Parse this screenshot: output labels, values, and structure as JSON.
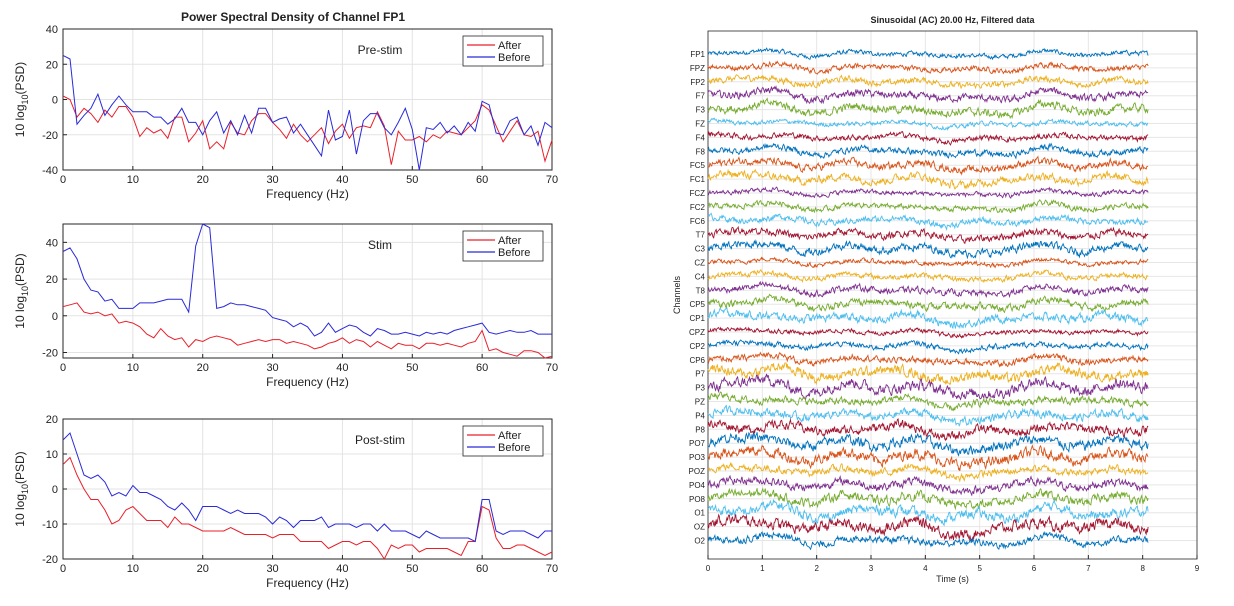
{
  "psd_title": "Power Spectral Density of Channel FP1",
  "eeg_title": "Sinusoidal (AC) 20.00 Hz, Filtered data",
  "chart_data": [
    {
      "type": "line",
      "panel": "Pre-stim",
      "xlabel": "Frequency (Hz)",
      "ylabel": "10 log10(PSD)",
      "xlim": [
        0,
        70
      ],
      "ylim": [
        -40,
        40
      ],
      "xticks": [
        0,
        10,
        20,
        30,
        40,
        50,
        60,
        70
      ],
      "yticks": [
        -40,
        -20,
        0,
        20,
        40
      ],
      "grid": true,
      "legend": "top-right",
      "x": [
        0,
        1,
        2,
        3,
        4,
        5,
        6,
        7,
        8,
        9,
        10,
        11,
        12,
        13,
        14,
        15,
        16,
        17,
        18,
        19,
        20,
        21,
        22,
        23,
        24,
        25,
        26,
        27,
        28,
        29,
        30,
        31,
        32,
        33,
        34,
        35,
        36,
        37,
        38,
        39,
        40,
        41,
        42,
        43,
        44,
        45,
        46,
        47,
        48,
        49,
        50,
        51,
        52,
        53,
        54,
        55,
        56,
        57,
        58,
        59,
        60,
        61,
        62,
        63,
        64,
        65,
        66,
        67,
        68,
        69,
        70
      ],
      "series": [
        {
          "name": "After",
          "color": "#e8202a",
          "values": [
            2,
            0,
            -10,
            -5,
            -8,
            -13,
            -6,
            -10,
            -4,
            -4,
            -10,
            -21,
            -16,
            -19,
            -17,
            -22,
            -10,
            -10,
            -24,
            -19,
            -12,
            -28,
            -24,
            -28,
            -13,
            -19,
            -20,
            -12,
            -8,
            -8,
            -13,
            -17,
            -22,
            -14,
            -20,
            -24,
            -20,
            -16,
            -25,
            -18,
            -14,
            -22,
            -16,
            -15,
            -16,
            -7,
            -15,
            -37,
            -18,
            -23,
            -23,
            -21,
            -24,
            -20,
            -22,
            -18,
            -19,
            -20,
            -16,
            -12,
            -3,
            -6,
            -15,
            -24,
            -18,
            -12,
            -20,
            -21,
            -18,
            -35,
            -23
          ]
        },
        {
          "name": "Before",
          "color": "#2a2ad8",
          "values": [
            25,
            23,
            -14,
            -9,
            -5,
            3,
            -9,
            -3,
            2,
            -3,
            -7,
            -7,
            -7,
            -10,
            -10,
            -14,
            -11,
            -5,
            -13,
            -13,
            -20,
            -12,
            -7,
            -19,
            -12,
            -20,
            -9,
            -19,
            -5,
            -5,
            -13,
            -11,
            -10,
            -19,
            -14,
            -20,
            -26,
            -32,
            -6,
            -23,
            -21,
            -6,
            -31,
            -12,
            -8,
            -8,
            -16,
            -20,
            -13,
            -5,
            -17,
            -40,
            -16,
            -17,
            -13,
            -19,
            -15,
            -20,
            -13,
            -18,
            -1,
            -3,
            -19,
            -20,
            -12,
            -10,
            -20,
            -15,
            -26,
            -13,
            -16
          ]
        }
      ]
    },
    {
      "type": "line",
      "panel": "Stim",
      "xlabel": "Frequency (Hz)",
      "ylabel": "10 log10(PSD)",
      "xlim": [
        0,
        70
      ],
      "ylim": [
        -23,
        50
      ],
      "xticks": [
        0,
        10,
        20,
        30,
        40,
        50,
        60,
        70
      ],
      "yticks": [
        -20,
        0,
        20,
        40
      ],
      "grid": true,
      "legend": "top-right",
      "x": [
        0,
        1,
        2,
        3,
        4,
        5,
        6,
        7,
        8,
        9,
        10,
        11,
        12,
        13,
        14,
        15,
        16,
        17,
        18,
        19,
        20,
        21,
        22,
        23,
        24,
        25,
        26,
        27,
        28,
        29,
        30,
        31,
        32,
        33,
        34,
        35,
        36,
        37,
        38,
        39,
        40,
        41,
        42,
        43,
        44,
        45,
        46,
        47,
        48,
        49,
        50,
        51,
        52,
        53,
        54,
        55,
        56,
        57,
        58,
        59,
        60,
        61,
        62,
        63,
        64,
        65,
        66,
        67,
        68,
        69,
        70
      ],
      "series": [
        {
          "name": "After",
          "color": "#e8202a",
          "values": [
            5,
            6,
            7,
            2,
            1,
            2,
            0,
            1,
            -4,
            -3,
            -4,
            -6,
            -10,
            -12,
            -7,
            -11,
            -13,
            -12,
            -17,
            -13,
            -14,
            -12,
            -11,
            -12,
            -13,
            -16,
            -15,
            -14,
            -13,
            -14,
            -13,
            -13,
            -15,
            -14,
            -15,
            -16,
            -18,
            -17,
            -15,
            -14,
            -12,
            -15,
            -13,
            -14,
            -17,
            -14,
            -16,
            -18,
            -15,
            -16,
            -16,
            -18,
            -15,
            -15,
            -16,
            -15,
            -16,
            -17,
            -15,
            -14,
            -8,
            -19,
            -18,
            -20,
            -21,
            -22,
            -19,
            -19,
            -20,
            -23,
            -22
          ]
        },
        {
          "name": "Before",
          "color": "#2a2ad8",
          "values": [
            35,
            37,
            31,
            20,
            14,
            13,
            8,
            9,
            4,
            4,
            4,
            7,
            7,
            7,
            8,
            9,
            9,
            9,
            2,
            38,
            50,
            48,
            4,
            5,
            7,
            6,
            6,
            5,
            4,
            3,
            -1,
            -2,
            -3,
            -6,
            -4,
            -6,
            -11,
            -9,
            -4,
            -9,
            -7,
            -5,
            -6,
            -9,
            -11,
            -7,
            -8,
            -10,
            -10,
            -9,
            -10,
            -11,
            -9,
            -10,
            -9,
            -10,
            -8,
            -7,
            -6,
            -5,
            -4,
            -9,
            -10,
            -9,
            -8,
            -9,
            -9,
            -8,
            -10,
            -10,
            -10
          ]
        }
      ]
    },
    {
      "type": "line",
      "panel": "Post-stim",
      "xlabel": "Frequency (Hz)",
      "ylabel": "10 log10(PSD)",
      "xlim": [
        0,
        70
      ],
      "ylim": [
        -20,
        20
      ],
      "xticks": [
        0,
        10,
        20,
        30,
        40,
        50,
        60,
        70
      ],
      "yticks": [
        -20,
        -10,
        0,
        10,
        20
      ],
      "grid": true,
      "legend": "top-right",
      "x": [
        0,
        1,
        2,
        3,
        4,
        5,
        6,
        7,
        8,
        9,
        10,
        11,
        12,
        13,
        14,
        15,
        16,
        17,
        18,
        19,
        20,
        21,
        22,
        23,
        24,
        25,
        26,
        27,
        28,
        29,
        30,
        31,
        32,
        33,
        34,
        35,
        36,
        37,
        38,
        39,
        40,
        41,
        42,
        43,
        44,
        45,
        46,
        47,
        48,
        49,
        50,
        51,
        52,
        53,
        54,
        55,
        56,
        57,
        58,
        59,
        60,
        61,
        62,
        63,
        64,
        65,
        66,
        67,
        68,
        69,
        70
      ],
      "series": [
        {
          "name": "After",
          "color": "#e8202a",
          "values": [
            7,
            9,
            4,
            0,
            -3,
            -3,
            -6,
            -10,
            -9,
            -6,
            -5,
            -7,
            -9,
            -9,
            -9,
            -11,
            -8,
            -10,
            -10,
            -11,
            -12,
            -12,
            -12,
            -12,
            -11,
            -12,
            -13,
            -13,
            -13,
            -13,
            -14,
            -13,
            -13,
            -13,
            -15,
            -15,
            -15,
            -15,
            -17,
            -16,
            -15,
            -15,
            -16,
            -15,
            -15,
            -17,
            -20,
            -16,
            -17,
            -16,
            -16,
            -18,
            -17,
            -17,
            -17,
            -17,
            -18,
            -19,
            -15,
            -15,
            -5,
            -6,
            -14,
            -17,
            -17,
            -16,
            -16,
            -17,
            -18,
            -19,
            -18
          ]
        },
        {
          "name": "Before",
          "color": "#2a2ad8",
          "values": [
            14,
            16,
            10,
            4,
            3,
            4,
            2,
            -2,
            -1,
            -2,
            1,
            -1,
            -1,
            -2,
            -3,
            -5,
            -6,
            -4,
            -6,
            -9,
            -5,
            -5,
            -5,
            -6,
            -7,
            -6,
            -7,
            -7,
            -7,
            -8,
            -10,
            -8,
            -9,
            -11,
            -9,
            -9,
            -9,
            -8,
            -11,
            -10,
            -10,
            -10,
            -11,
            -10,
            -10,
            -12,
            -10,
            -12,
            -12,
            -12,
            -13,
            -14,
            -12,
            -13,
            -14,
            -14,
            -14,
            -14,
            -14,
            -15,
            -3,
            -3,
            -12,
            -13,
            -12,
            -12,
            -12,
            -13,
            -14,
            -12,
            -12
          ]
        }
      ]
    },
    {
      "type": "line",
      "panel": "EEG",
      "xlabel": "Time (s)",
      "ylabel": "Channels",
      "xlim": [
        0,
        9
      ],
      "xticks": [
        0,
        1,
        2,
        3,
        4,
        5,
        6,
        7,
        8,
        9
      ],
      "grid": true,
      "duration_s": 8.1,
      "channels": [
        "FP1",
        "FPZ",
        "FP2",
        "F7",
        "F3",
        "FZ",
        "F4",
        "F8",
        "FC5",
        "FC1",
        "FCZ",
        "FC2",
        "FC6",
        "T7",
        "C3",
        "CZ",
        "C4",
        "T8",
        "CP5",
        "CP1",
        "CPZ",
        "CP2",
        "CP6",
        "P7",
        "P3",
        "PZ",
        "P4",
        "P8",
        "PO7",
        "PO3",
        "POZ",
        "PO4",
        "PO8",
        "O1",
        "OZ",
        "O2"
      ],
      "channel_colors": [
        "#0072bd",
        "#d95319",
        "#edb120",
        "#7e2f8e",
        "#77ac30",
        "#4dbeee",
        "#a2142f"
      ]
    }
  ]
}
